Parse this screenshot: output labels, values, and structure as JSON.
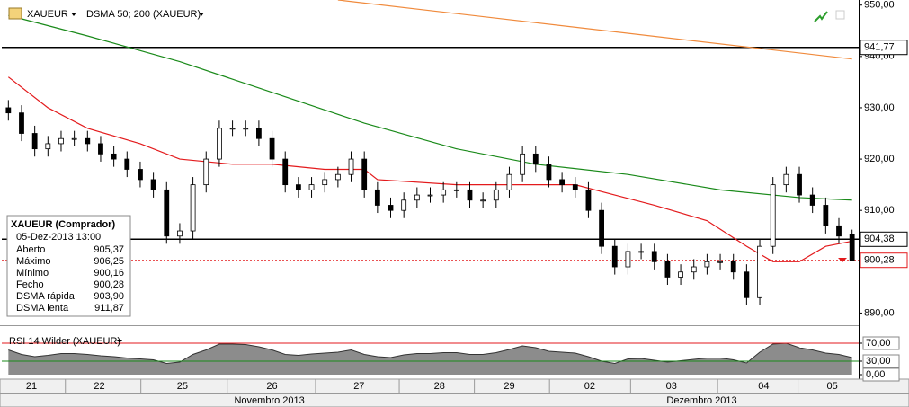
{
  "chart_data": [
    {
      "type": "candlestick",
      "symbol": "XAUEUR",
      "indicator": "DSMA 50; 200 (XAUEUR)",
      "open": [
        930,
        929,
        925,
        922,
        923,
        924,
        924,
        923,
        921,
        920,
        918,
        916,
        914,
        905,
        906,
        915,
        920,
        926,
        926,
        926,
        924,
        920,
        915,
        914,
        915,
        916,
        917,
        920,
        914,
        911,
        910,
        912,
        913,
        913,
        914,
        914,
        912,
        912,
        914,
        917,
        921,
        919,
        916,
        915,
        914,
        910,
        903,
        899,
        902,
        902,
        900,
        897,
        898,
        899,
        900,
        900,
        898,
        893,
        903,
        915,
        917,
        913,
        911,
        907,
        905.37
      ],
      "high": [
        931.5,
        930.5,
        926.5,
        924.5,
        925.5,
        925.5,
        925.5,
        924.5,
        922.5,
        921.5,
        919.5,
        917.5,
        915.5,
        907.5,
        916.5,
        921.5,
        927.5,
        927.5,
        927.5,
        927.5,
        925.5,
        921.5,
        916.5,
        916.5,
        917.5,
        918.5,
        921.5,
        921.5,
        915.5,
        912.5,
        913.5,
        914.5,
        914.5,
        915.5,
        915.5,
        915.5,
        913.5,
        915.5,
        918.5,
        922.5,
        922.5,
        920.5,
        917.5,
        916.5,
        915.5,
        911.5,
        904.5,
        903.5,
        903.5,
        903.5,
        901.5,
        899.5,
        900.5,
        901.5,
        901.5,
        901.5,
        899.5,
        904.5,
        916.5,
        918.5,
        918.5,
        914.5,
        912.5,
        908.5,
        906.25
      ],
      "low": [
        927.5,
        923.5,
        920.5,
        920.5,
        921.5,
        922.5,
        921.5,
        919.5,
        918.5,
        916.5,
        914.5,
        912.5,
        903.5,
        903.5,
        904.5,
        913.5,
        918.5,
        924.5,
        924.5,
        922.5,
        918.5,
        913.5,
        912.5,
        912.5,
        913.5,
        914.5,
        915.5,
        912.5,
        909.5,
        908.5,
        908.5,
        910.5,
        911.5,
        911.5,
        912.5,
        910.5,
        910.5,
        910.5,
        912.5,
        915.5,
        917.5,
        914.5,
        913.5,
        912.5,
        908.5,
        901.5,
        897.5,
        897.5,
        900.5,
        898.5,
        895.5,
        895.5,
        896.5,
        897.5,
        898.5,
        896.5,
        891.5,
        891.5,
        901.5,
        913.5,
        911.5,
        909.5,
        905.5,
        903.5,
        900.16
      ],
      "close": [
        929,
        925,
        922,
        923,
        924,
        924,
        923,
        921,
        920,
        918,
        916,
        914,
        905,
        906,
        915,
        920,
        926,
        926,
        926,
        924,
        920,
        915,
        914,
        915,
        916,
        917,
        920,
        914,
        911,
        910,
        912,
        913,
        913,
        914,
        914,
        912,
        912,
        914,
        917,
        921,
        919,
        916,
        915,
        914,
        910,
        903,
        899,
        902,
        902,
        900,
        897,
        898,
        899,
        900,
        900,
        898,
        893,
        903,
        915,
        917,
        913,
        911,
        907,
        905,
        900.28
      ],
      "series": [
        {
          "name": "DSMA rápida",
          "color": "#e31a1c",
          "x": [
            0,
            3,
            6,
            10,
            13,
            17,
            20,
            24,
            27,
            28,
            34,
            40,
            43,
            46,
            49,
            53,
            56,
            58,
            60,
            62,
            64
          ],
          "values": [
            936,
            930,
            926,
            923,
            920,
            919,
            919,
            918,
            918,
            916,
            915,
            915,
            915,
            913,
            911,
            908,
            903,
            900,
            900,
            903,
            904
          ]
        },
        {
          "name": "DSMA lenta",
          "color": "#1a8a1a",
          "x": [
            0,
            6,
            13,
            20,
            27,
            34,
            40,
            47,
            54,
            60,
            64
          ],
          "values": [
            948,
            944,
            939,
            933,
            927,
            922,
            919,
            917,
            914,
            912.5,
            912
          ]
        },
        {
          "name": null,
          "color": "#f08a3c",
          "x": [
            25,
            64
          ],
          "values": [
            951,
            939.5
          ]
        }
      ],
      "ylim": [
        888.5,
        951
      ],
      "yticks": [
        {
          "value": 890,
          "label": "890,00"
        },
        {
          "value": 900,
          "label": "900,00"
        },
        {
          "value": 910,
          "label": "910,00"
        },
        {
          "value": 920,
          "label": "920,00"
        },
        {
          "value": 930,
          "label": "930,00"
        },
        {
          "value": 940,
          "label": "940,00"
        },
        {
          "value": 950,
          "label": "950,00"
        }
      ],
      "price_levels": [
        {
          "value": 941.77,
          "label": "941,77",
          "color": "#000000",
          "dashed": false
        },
        {
          "value": 904.38,
          "label": "904,38",
          "color": "#000000",
          "dashed": false
        },
        {
          "value": 900.28,
          "label": "900,28",
          "color": "#e31a1c",
          "dashed": true
        }
      ],
      "xticks": [
        {
          "value": 1.75,
          "label": "21"
        },
        {
          "value": 6.9,
          "label": "22"
        },
        {
          "value": 13.2,
          "label": "25"
        },
        {
          "value": 20,
          "label": "26"
        },
        {
          "value": 26.6,
          "label": "27"
        },
        {
          "value": 32.7,
          "label": "28"
        },
        {
          "value": 38,
          "label": "29"
        },
        {
          "value": 44.1,
          "label": "02"
        },
        {
          "value": 50.3,
          "label": "03"
        },
        {
          "value": 57.3,
          "label": "04"
        },
        {
          "value": 62.5,
          "label": "05"
        }
      ],
      "months": [
        {
          "value": 19.8,
          "label": "Novembro 2013"
        },
        {
          "value": 52.6,
          "label": "Dezembro 2013"
        }
      ],
      "info_box": {
        "title": "XAUEUR (Comprador)",
        "date": "05-Dez-2013 13:00",
        "rows": [
          [
            "Aberto",
            "905,37"
          ],
          [
            "Máximo",
            "906,25"
          ],
          [
            "Mínimo",
            "900,16"
          ],
          [
            "Fecho",
            "900,28"
          ]
        ],
        "ma_values": [
          "903,90",
          "911,87"
        ]
      }
    },
    {
      "type": "area",
      "title": "RSI 14 Wilder (XAUEUR)",
      "values": [
        55,
        45,
        40,
        43,
        47,
        47,
        45,
        42,
        40,
        37,
        35,
        33,
        25,
        28,
        45,
        55,
        68,
        68,
        67,
        62,
        55,
        45,
        43,
        46,
        48,
        50,
        55,
        45,
        40,
        38,
        44,
        47,
        47,
        49,
        49,
        45,
        45,
        49,
        56,
        64,
        60,
        52,
        50,
        48,
        40,
        30,
        25,
        35,
        36,
        32,
        28,
        31,
        34,
        37,
        37,
        33,
        26,
        50,
        68,
        70,
        60,
        55,
        48,
        45,
        38
      ],
      "color": "#8c8c8c",
      "ylim": [
        0,
        100
      ],
      "yticks": [
        {
          "value": 0,
          "label": "0,00"
        },
        {
          "value": 30,
          "label": "30,00"
        },
        {
          "value": 70,
          "label": "70,00"
        }
      ],
      "levels": [
        {
          "value": 70,
          "color": "#e31a1c"
        },
        {
          "value": 30,
          "color": "#1a8a1a"
        }
      ]
    }
  ]
}
